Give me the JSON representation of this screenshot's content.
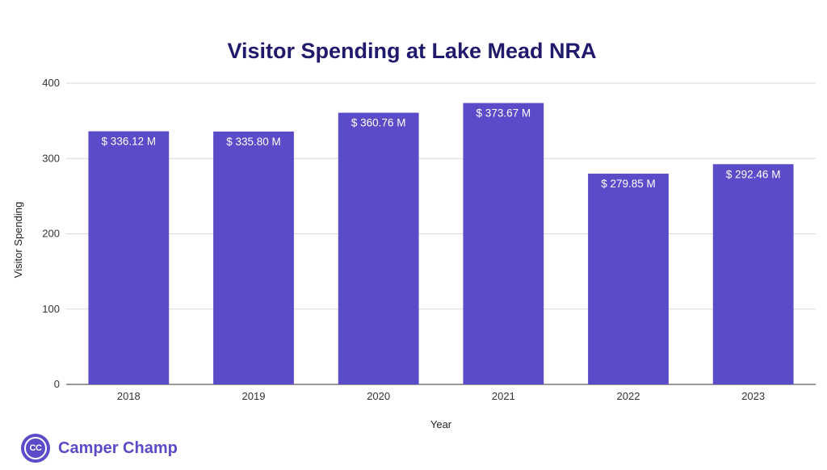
{
  "brand": {
    "logo_text": "CC",
    "name": "Camper Champ",
    "color": "#5a4cc8"
  },
  "chart_data": {
    "type": "bar",
    "title": "Visitor Spending at Lake Mead NRA",
    "xlabel": "Year",
    "ylabel": "Visitor Spending",
    "categories": [
      "2018",
      "2019",
      "2020",
      "2021",
      "2022",
      "2023"
    ],
    "values": [
      336.12,
      335.8,
      360.76,
      373.67,
      279.85,
      292.46
    ],
    "data_labels": [
      "$ 336.12 M",
      "$ 335.80 M",
      "$ 360.76 M",
      "$ 373.67 M",
      "$ 279.85 M",
      "$ 292.46 M"
    ],
    "ylim": [
      0,
      400
    ],
    "yticks": [
      0,
      100,
      200,
      300,
      400
    ],
    "grid": true,
    "legend": "none",
    "bar_color": "#5a4cc8",
    "title_color": "#1f1a6b"
  }
}
